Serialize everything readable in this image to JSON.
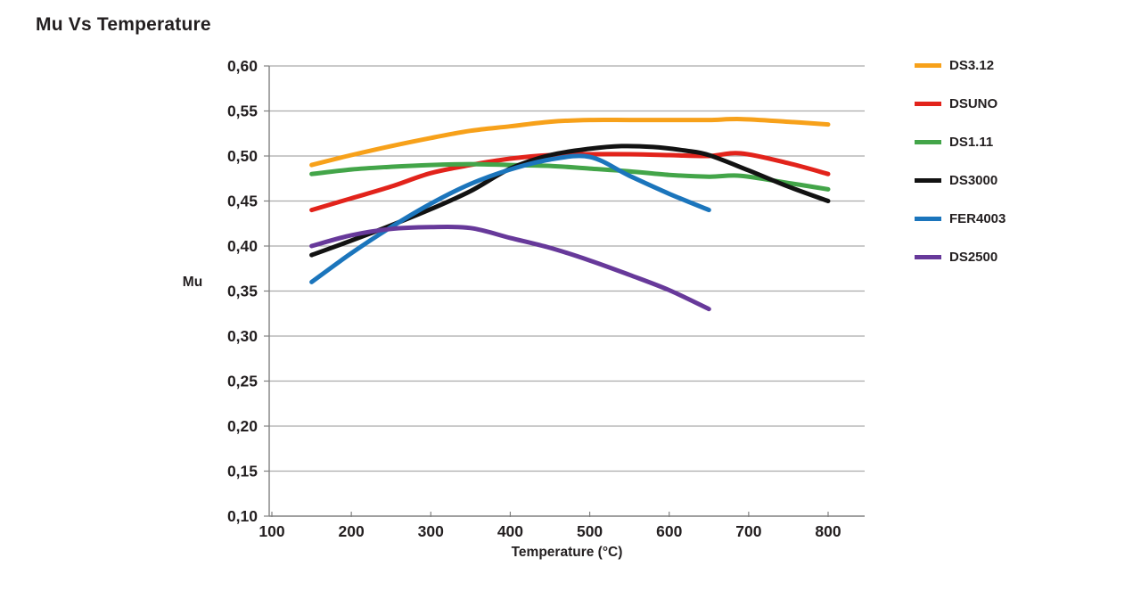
{
  "page": {
    "title": "Mu Vs Temperature"
  },
  "axis_titles": {
    "x": "Temperature (°C)",
    "y": "Mu"
  },
  "chart_data": {
    "type": "line",
    "title": "Mu Vs Temperature",
    "xlabel": "Temperature (°C)",
    "ylabel": "Mu",
    "xlim": [
      100,
      800
    ],
    "ylim": [
      0.1,
      0.6
    ],
    "grid": "horizontal",
    "legend_position": "right",
    "decimal_separator": ",",
    "grid_color": "#ABABAB",
    "axis_color": "#808080",
    "text_color": "#231F20",
    "xticks": {
      "values": [
        100,
        200,
        300,
        400,
        500,
        600,
        700,
        800
      ],
      "labels": [
        "100",
        "200",
        "300",
        "400",
        "500",
        "600",
        "700",
        "800"
      ]
    },
    "yticks": {
      "values": [
        0.6,
        0.55,
        0.5,
        0.45,
        0.4,
        0.35,
        0.3,
        0.25,
        0.2,
        0.15,
        0.1
      ],
      "labels": [
        "0,60",
        "0,55",
        "0,50",
        "0,45",
        "0,40",
        "0,35",
        "0,30",
        "0,25",
        "0,20",
        "0,15",
        "0,10"
      ]
    },
    "series": [
      {
        "name": "DS3.12",
        "color": "#F7A11A",
        "points": [
          [
            150,
            0.49
          ],
          [
            200,
            0.501
          ],
          [
            250,
            0.511
          ],
          [
            300,
            0.52
          ],
          [
            350,
            0.528
          ],
          [
            400,
            0.533
          ],
          [
            450,
            0.538
          ],
          [
            500,
            0.54
          ],
          [
            550,
            0.54
          ],
          [
            600,
            0.54
          ],
          [
            650,
            0.54
          ],
          [
            690,
            0.541
          ],
          [
            750,
            0.538
          ],
          [
            800,
            0.535
          ]
        ]
      },
      {
        "name": "DSUNO",
        "color": "#E2231B",
        "points": [
          [
            150,
            0.44
          ],
          [
            200,
            0.453
          ],
          [
            250,
            0.466
          ],
          [
            300,
            0.481
          ],
          [
            350,
            0.49
          ],
          [
            400,
            0.497
          ],
          [
            450,
            0.501
          ],
          [
            500,
            0.502
          ],
          [
            550,
            0.502
          ],
          [
            600,
            0.501
          ],
          [
            650,
            0.5
          ],
          [
            690,
            0.503
          ],
          [
            750,
            0.492
          ],
          [
            800,
            0.48
          ]
        ]
      },
      {
        "name": "DS1.11",
        "color": "#43A549",
        "points": [
          [
            150,
            0.48
          ],
          [
            200,
            0.485
          ],
          [
            250,
            0.488
          ],
          [
            300,
            0.49
          ],
          [
            350,
            0.491
          ],
          [
            400,
            0.49
          ],
          [
            450,
            0.489
          ],
          [
            500,
            0.486
          ],
          [
            550,
            0.483
          ],
          [
            600,
            0.479
          ],
          [
            650,
            0.477
          ],
          [
            690,
            0.478
          ],
          [
            750,
            0.47
          ],
          [
            800,
            0.463
          ]
        ]
      },
      {
        "name": "DS3000",
        "color": "#121212",
        "points": [
          [
            150,
            0.39
          ],
          [
            200,
            0.406
          ],
          [
            250,
            0.423
          ],
          [
            300,
            0.441
          ],
          [
            350,
            0.461
          ],
          [
            400,
            0.486
          ],
          [
            450,
            0.501
          ],
          [
            500,
            0.508
          ],
          [
            540,
            0.511
          ],
          [
            580,
            0.51
          ],
          [
            620,
            0.506
          ],
          [
            650,
            0.501
          ],
          [
            700,
            0.484
          ],
          [
            750,
            0.466
          ],
          [
            800,
            0.45
          ]
        ]
      },
      {
        "name": "FER4003",
        "color": "#1B75BC",
        "points": [
          [
            150,
            0.36
          ],
          [
            200,
            0.392
          ],
          [
            250,
            0.421
          ],
          [
            300,
            0.447
          ],
          [
            350,
            0.469
          ],
          [
            400,
            0.485
          ],
          [
            450,
            0.496
          ],
          [
            500,
            0.499
          ],
          [
            550,
            0.478
          ],
          [
            600,
            0.458
          ],
          [
            650,
            0.44
          ]
        ]
      },
      {
        "name": "DS2500",
        "color": "#67399A",
        "points": [
          [
            150,
            0.4
          ],
          [
            200,
            0.412
          ],
          [
            250,
            0.419
          ],
          [
            300,
            0.421
          ],
          [
            350,
            0.42
          ],
          [
            400,
            0.409
          ],
          [
            450,
            0.398
          ],
          [
            500,
            0.384
          ],
          [
            550,
            0.368
          ],
          [
            600,
            0.351
          ],
          [
            650,
            0.33
          ]
        ]
      }
    ]
  }
}
